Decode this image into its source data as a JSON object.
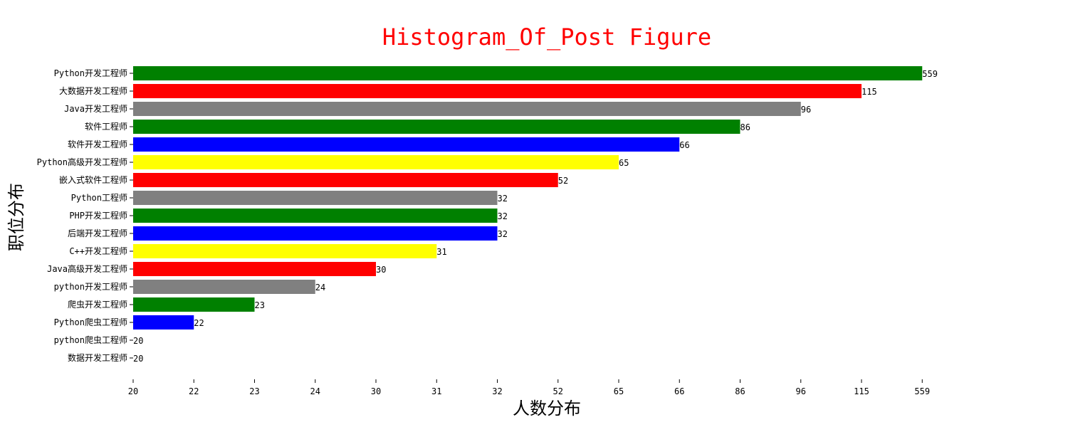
{
  "chart_data": {
    "type": "bar",
    "orientation": "horizontal",
    "title": "Histogram_Of_Post Figure",
    "xlabel": "人数分布",
    "ylabel": "职位分布",
    "x_tick_labels": [
      "20",
      "22",
      "23",
      "24",
      "30",
      "31",
      "32",
      "52",
      "65",
      "66",
      "86",
      "96",
      "115",
      "559"
    ],
    "categories": [
      "Python开发工程师",
      "大数据开发工程师",
      "Java开发工程师",
      "软件工程师",
      "软件开发工程师",
      "Python高级开发工程师",
      "嵌入式软件工程师",
      "Python工程师",
      "PHP开发工程师",
      "后端开发工程师",
      "C++开发工程师",
      "Java高级开发工程师",
      "python开发工程师",
      "爬虫开发工程师",
      "Python爬虫工程师",
      "python爬虫工程师",
      "数据开发工程师"
    ],
    "values": [
      559,
      115,
      96,
      86,
      66,
      65,
      52,
      32,
      32,
      32,
      31,
      30,
      24,
      23,
      22,
      20,
      20
    ],
    "colors": [
      "#008000",
      "#ff0000",
      "#808080",
      "#008000",
      "#0000ff",
      "#ffff00",
      "#ff0000",
      "#808080",
      "#008000",
      "#0000ff",
      "#ffff00",
      "#ff0000",
      "#808080",
      "#008000",
      "#0000ff",
      "#ffff00",
      "#ff0000"
    ],
    "grid": false,
    "legend": "none"
  }
}
